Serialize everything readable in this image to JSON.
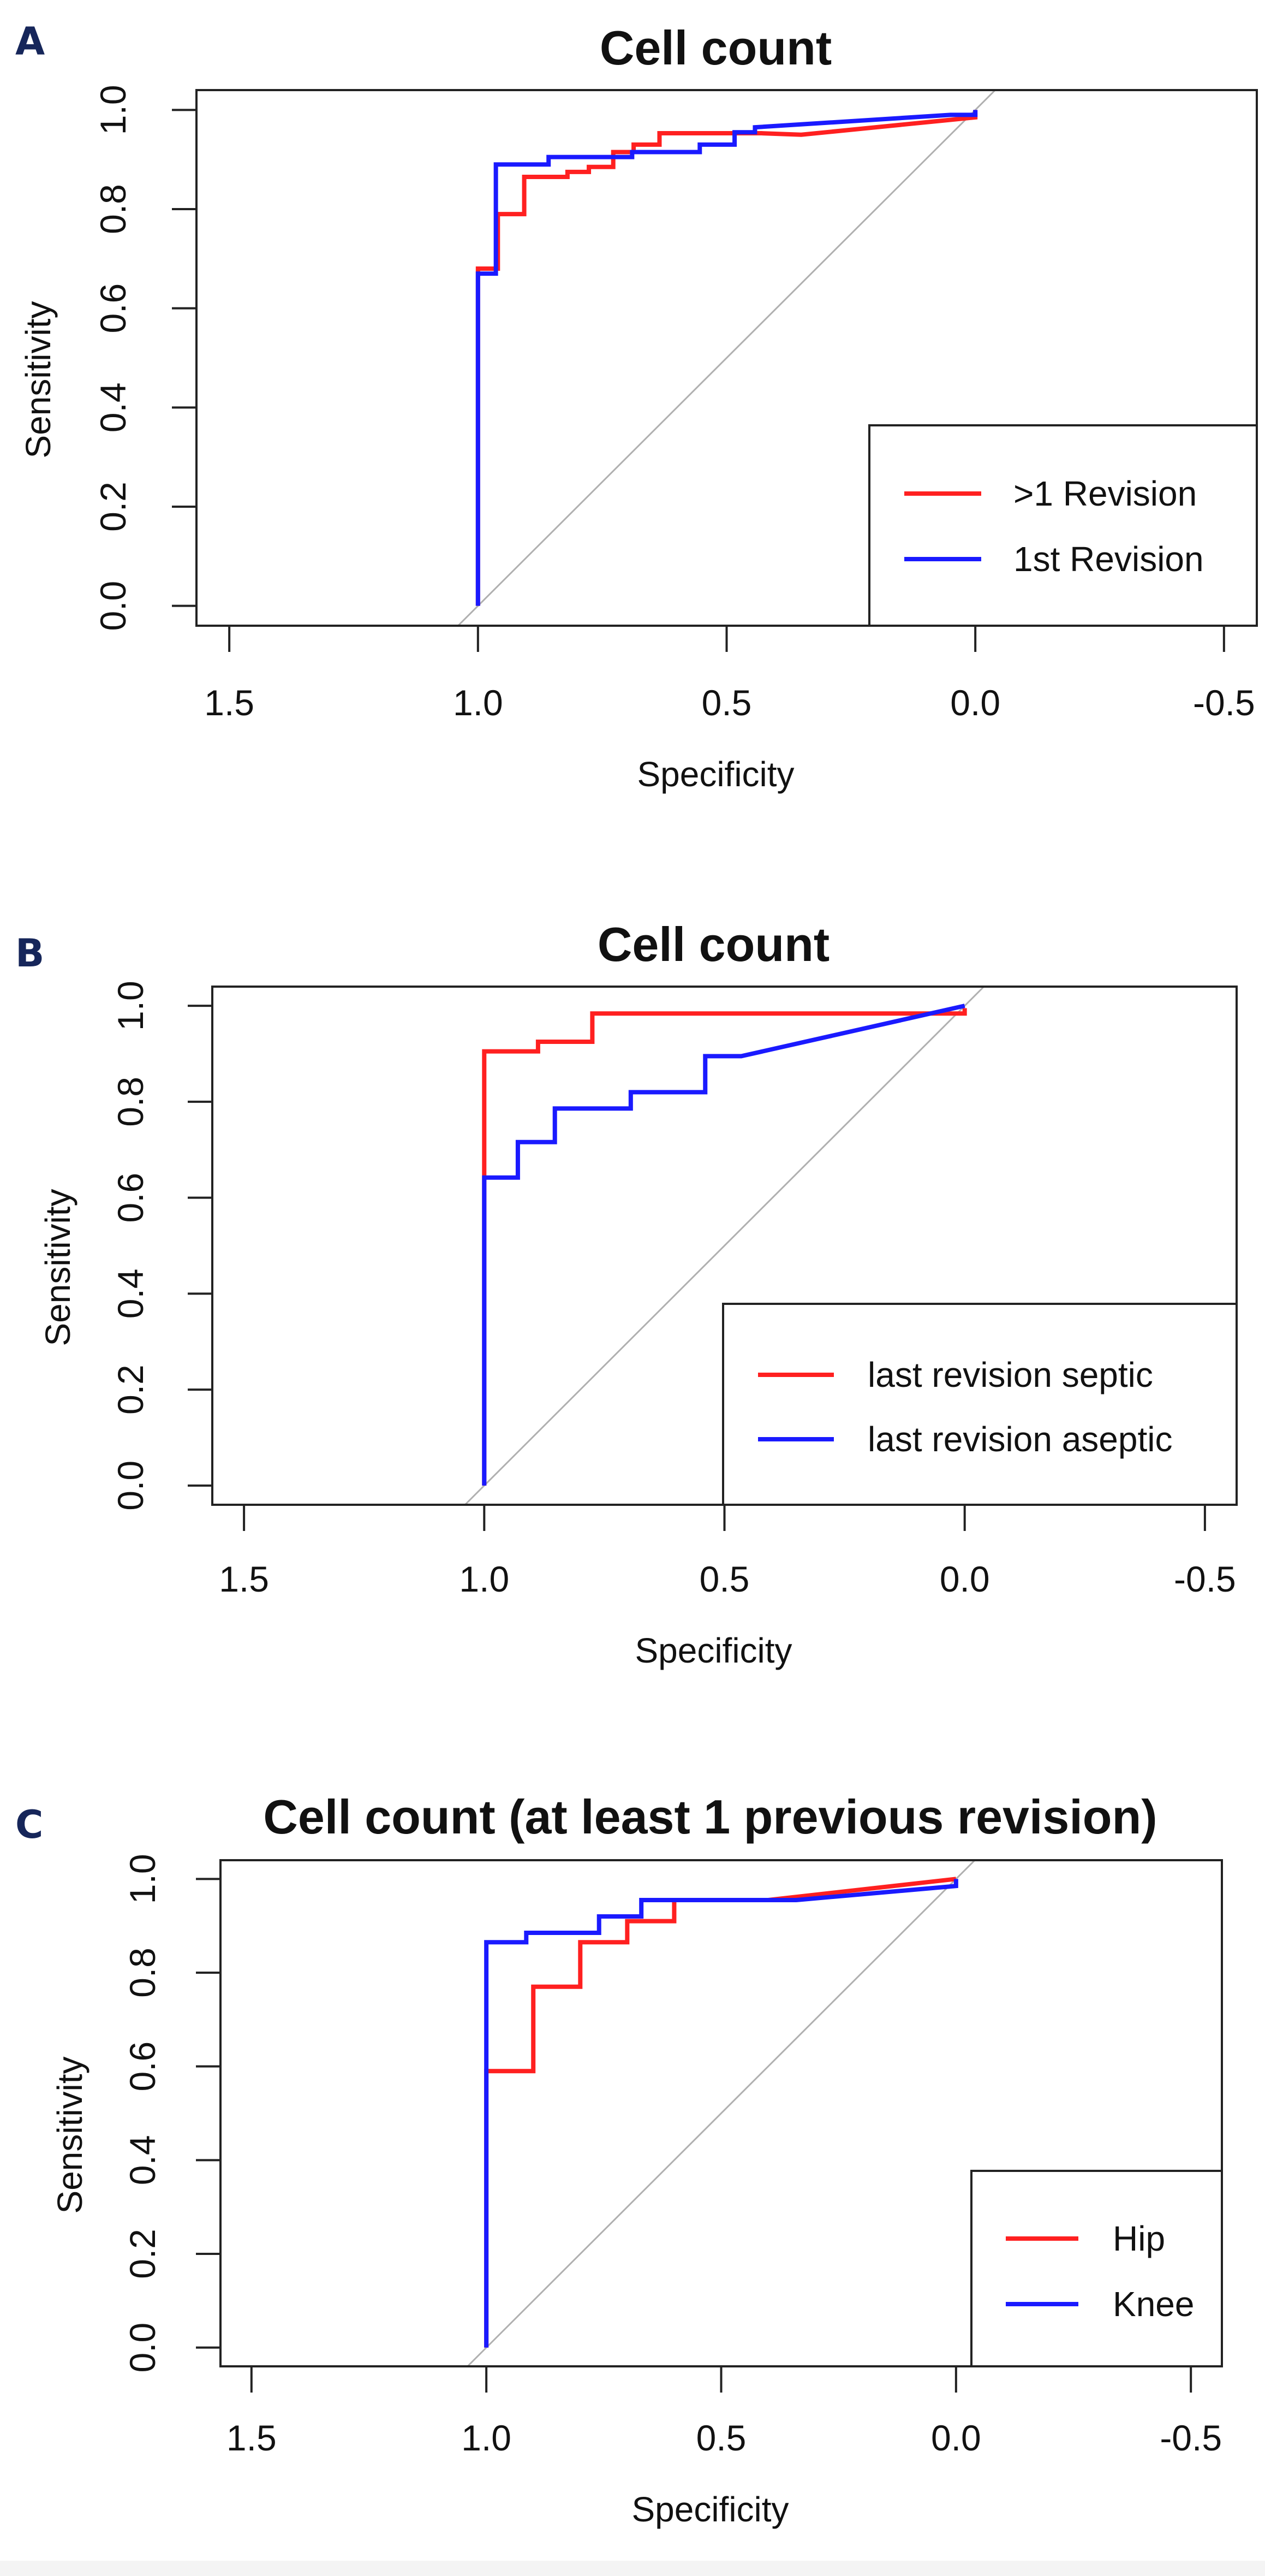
{
  "colors": {
    "red": "#ff2020",
    "blue": "#1a1aff",
    "diagonal": "#b0b0b0",
    "axis": "#222222",
    "letter": "#16265a"
  },
  "chart_data": [
    {
      "type": "line",
      "panel_label": "A",
      "title": "Cell count",
      "xlabel": "Specificity",
      "ylabel": "Sensitivity",
      "xlim": [
        1.566,
        -0.566
      ],
      "ylim": [
        -0.04,
        1.04
      ],
      "x_ticks": [
        1.5,
        1.0,
        0.5,
        0.0,
        -0.5
      ],
      "x_tick_labels": [
        "1.5",
        "1.0",
        "0.5",
        "0.0",
        "-0.5"
      ],
      "y_ticks": [
        0.0,
        0.2,
        0.4,
        0.6,
        0.8,
        1.0
      ],
      "y_tick_labels": [
        "0.0",
        "0.2",
        "0.4",
        "0.6",
        "0.8",
        "1.0"
      ],
      "legend_position": "bottom-right",
      "series": [
        {
          "name": ">1 Revision",
          "color": "#ff2020",
          "x": [
            1,
            1,
            0.96,
            0.96,
            0.907,
            0.907,
            0.82,
            0.82,
            0.777,
            0.777,
            0.728,
            0.728,
            0.687,
            0.687,
            0.635,
            0.635,
            0.43,
            0.35,
            0.2,
            0.05,
            0,
            0
          ],
          "y": [
            0,
            0.68,
            0.68,
            0.79,
            0.79,
            0.865,
            0.865,
            0.875,
            0.875,
            0.885,
            0.885,
            0.915,
            0.915,
            0.93,
            0.93,
            0.953,
            0.953,
            0.95,
            0.965,
            0.98,
            0.985,
            1.0
          ]
        },
        {
          "name": "1st Revision",
          "color": "#1a1aff",
          "x": [
            1,
            1,
            0.964,
            0.964,
            0.858,
            0.858,
            0.69,
            0.69,
            0.554,
            0.554,
            0.484,
            0.484,
            0.443,
            0.443,
            0.05,
            0,
            0
          ],
          "y": [
            0,
            0.67,
            0.67,
            0.89,
            0.89,
            0.905,
            0.905,
            0.915,
            0.915,
            0.93,
            0.93,
            0.955,
            0.955,
            0.965,
            0.99,
            0.99,
            1.0
          ]
        }
      ]
    },
    {
      "type": "line",
      "panel_label": "B",
      "title": "Cell count",
      "xlabel": "Specificity",
      "ylabel": "Sensitivity",
      "xlim": [
        1.566,
        -0.566
      ],
      "ylim": [
        -0.04,
        1.04
      ],
      "x_ticks": [
        1.5,
        1.0,
        0.5,
        0.0,
        -0.5
      ],
      "x_tick_labels": [
        "1.5",
        "1.0",
        "0.5",
        "0.0",
        "-0.5"
      ],
      "y_ticks": [
        0.0,
        0.2,
        0.4,
        0.6,
        0.8,
        1.0
      ],
      "y_tick_labels": [
        "0.0",
        "0.2",
        "0.4",
        "0.6",
        "0.8",
        "1.0"
      ],
      "legend_position": "bottom-right",
      "series": [
        {
          "name": "last revision septic",
          "color": "#ff2020",
          "x": [
            1,
            1,
            0.888,
            0.888,
            0.775,
            0.775,
            0,
            0
          ],
          "y": [
            0,
            0.905,
            0.905,
            0.925,
            0.925,
            0.984,
            0.984,
            0.995
          ]
        },
        {
          "name": "last revision aseptic",
          "color": "#1a1aff",
          "x": [
            1,
            1,
            0.93,
            0.93,
            0.853,
            0.853,
            0.695,
            0.695,
            0.54,
            0.54,
            0.465,
            0
          ],
          "y": [
            0,
            0.642,
            0.642,
            0.716,
            0.716,
            0.786,
            0.786,
            0.82,
            0.82,
            0.895,
            0.895,
            1.0
          ]
        }
      ]
    },
    {
      "type": "line",
      "panel_label": "C",
      "title": "Cell count (at least 1 previous revision)",
      "xlabel": "Specificity",
      "ylabel": "Sensitivity",
      "xlim": [
        1.566,
        -0.566
      ],
      "ylim": [
        -0.04,
        1.04
      ],
      "x_ticks": [
        1.5,
        1.0,
        0.5,
        0.0,
        -0.5
      ],
      "x_tick_labels": [
        "1.5",
        "1.0",
        "0.5",
        "0.0",
        "-0.5"
      ],
      "y_ticks": [
        0.0,
        0.2,
        0.4,
        0.6,
        0.8,
        1.0
      ],
      "y_tick_labels": [
        "0.0",
        "0.2",
        "0.4",
        "0.6",
        "0.8",
        "1.0"
      ],
      "legend_position": "bottom-right",
      "series": [
        {
          "name": "Hip",
          "color": "#ff2020",
          "x": [
            1,
            1,
            0.9,
            0.9,
            0.8,
            0.8,
            0.7,
            0.7,
            0.6,
            0.6,
            0.4,
            0
          ],
          "y": [
            0,
            0.59,
            0.59,
            0.77,
            0.77,
            0.865,
            0.865,
            0.91,
            0.91,
            0.955,
            0.955,
            1.0
          ]
        },
        {
          "name": "Knee",
          "color": "#1a1aff",
          "x": [
            1,
            1,
            0.915,
            0.915,
            0.76,
            0.76,
            0.67,
            0.67,
            0.34,
            0,
            0
          ],
          "y": [
            0,
            0.865,
            0.865,
            0.885,
            0.885,
            0.92,
            0.92,
            0.955,
            0.955,
            0.985,
            1.0
          ]
        }
      ]
    }
  ]
}
